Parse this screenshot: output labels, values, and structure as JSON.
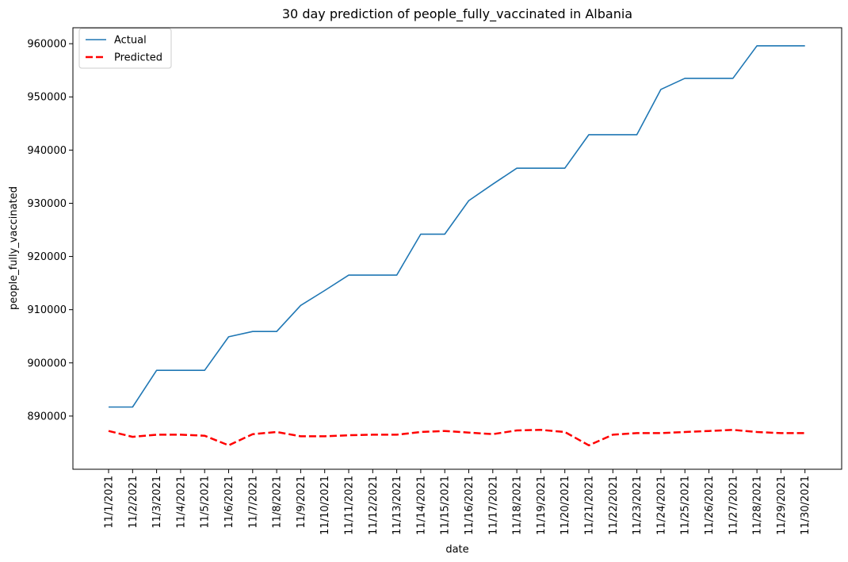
{
  "chart_data": {
    "type": "line",
    "title": "30 day prediction of people_fully_vaccinated in Albania",
    "xlabel": "date",
    "ylabel": "people_fully_vaccinated",
    "ylim": [
      880000,
      963000
    ],
    "yticks": [
      890000,
      900000,
      910000,
      920000,
      930000,
      940000,
      950000,
      960000
    ],
    "x": [
      "11/1/2021",
      "11/2/2021",
      "11/3/2021",
      "11/4/2021",
      "11/5/2021",
      "11/6/2021",
      "11/7/2021",
      "11/8/2021",
      "11/9/2021",
      "11/10/2021",
      "11/11/2021",
      "11/12/2021",
      "11/13/2021",
      "11/14/2021",
      "11/15/2021",
      "11/16/2021",
      "11/17/2021",
      "11/18/2021",
      "11/19/2021",
      "11/20/2021",
      "11/21/2021",
      "11/22/2021",
      "11/23/2021",
      "11/24/2021",
      "11/25/2021",
      "11/26/2021",
      "11/27/2021",
      "11/28/2021",
      "11/29/2021",
      "11/30/2021"
    ],
    "series": [
      {
        "name": "Actual",
        "color": "#1f77b4",
        "style": "solid",
        "values": [
          891700,
          891700,
          898600,
          898600,
          898600,
          904900,
          905900,
          905900,
          910800,
          913600,
          916500,
          916500,
          916500,
          924200,
          924200,
          930500,
          933600,
          936600,
          936600,
          936600,
          942900,
          942900,
          942900,
          951400,
          953500,
          953500,
          953500,
          959600,
          959600,
          959600
        ]
      },
      {
        "name": "Predicted",
        "color": "#ff0000",
        "style": "dashed",
        "values": [
          887200,
          886100,
          886500,
          886500,
          886300,
          884500,
          886600,
          887000,
          886200,
          886200,
          886400,
          886500,
          886500,
          887000,
          887200,
          886900,
          886600,
          887300,
          887400,
          887000,
          884500,
          886500,
          886800,
          886800,
          887000,
          887200,
          887400,
          887000,
          886800,
          886800
        ]
      }
    ],
    "legend": {
      "position": "top-left"
    },
    "grid": false
  }
}
